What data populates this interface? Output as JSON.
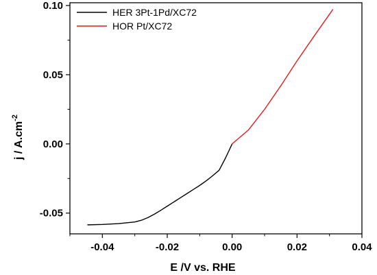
{
  "chart_data": {
    "type": "line",
    "xlabel": "E /V vs. RHE",
    "ylabel_main": "j / A.cm",
    "ylabel_sup": "-2",
    "xlim": [
      -0.05,
      0.04
    ],
    "ylim": [
      -0.065,
      0.102
    ],
    "x_ticks": [
      -0.04,
      -0.02,
      0.0,
      0.02,
      0.04
    ],
    "x_tick_labels": [
      "-0.04",
      "-0.02",
      "0.00",
      "0.02",
      "0.04"
    ],
    "y_ticks": [
      -0.05,
      0.0,
      0.05,
      0.1
    ],
    "y_tick_labels": [
      "-0.05",
      "0.00",
      "0.05",
      "0.10"
    ],
    "grid": false,
    "legend_position": "top-left",
    "series": [
      {
        "name": "HER 3Pt-1Pd/XC72",
        "color": "#000000",
        "x": [
          -0.0445,
          -0.04,
          -0.035,
          -0.03,
          -0.028,
          -0.026,
          -0.024,
          -0.022,
          -0.02,
          -0.018,
          -0.016,
          -0.014,
          -0.012,
          -0.01,
          -0.008,
          -0.006,
          -0.004,
          -0.002,
          0.0
        ],
        "y": [
          -0.0585,
          -0.0582,
          -0.0576,
          -0.0564,
          -0.0552,
          -0.0533,
          -0.0508,
          -0.048,
          -0.045,
          -0.042,
          -0.039,
          -0.036,
          -0.033,
          -0.03,
          -0.0267,
          -0.023,
          -0.019,
          -0.01,
          0.0
        ]
      },
      {
        "name": "HOR Pt/XC72",
        "color": "#e41a1c",
        "x": [
          0.0,
          0.002,
          0.005,
          0.01,
          0.015,
          0.02,
          0.025,
          0.031
        ],
        "y": [
          0.0,
          0.004,
          0.01,
          0.025,
          0.042,
          0.06,
          0.077,
          0.097
        ]
      }
    ]
  }
}
